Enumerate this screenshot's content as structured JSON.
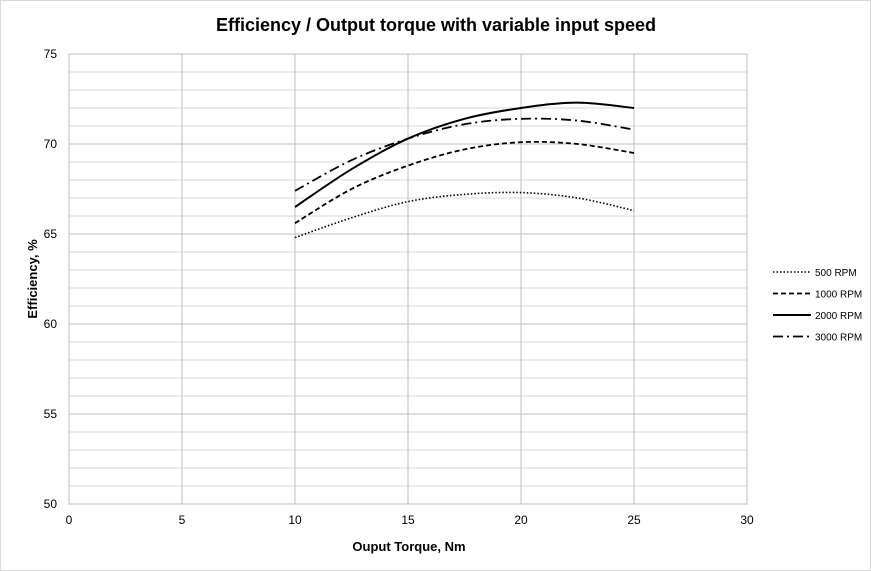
{
  "chart_data": {
    "type": "line",
    "title": "Efficiency / Output torque with variable input speed",
    "xlabel": "Ouput Torque, Nm",
    "ylabel": "Efficiency, %",
    "xlim": [
      0,
      30
    ],
    "ylim": [
      50,
      75
    ],
    "x_ticks": [
      0,
      5,
      10,
      15,
      20,
      25,
      30
    ],
    "y_ticks": [
      50,
      55,
      60,
      65,
      70,
      75
    ],
    "grid": true,
    "minor_y_step": 1,
    "legend_position": "right",
    "x": [
      10,
      12.5,
      15,
      17.5,
      20,
      22.5,
      25
    ],
    "series": [
      {
        "name": "500 RPM",
        "style": "dotted",
        "color": "#000000",
        "values": [
          64.8,
          65.9,
          66.8,
          67.2,
          67.3,
          67.0,
          66.3
        ]
      },
      {
        "name": "1000 RPM",
        "style": "dashed",
        "color": "#000000",
        "values": [
          65.6,
          67.5,
          68.8,
          69.7,
          70.1,
          70.0,
          69.5
        ]
      },
      {
        "name": "2000 RPM",
        "style": "solid",
        "color": "#000000",
        "values": [
          66.5,
          68.6,
          70.3,
          71.4,
          72.0,
          72.3,
          72.0
        ]
      },
      {
        "name": "3000 RPM",
        "style": "dashdot",
        "color": "#000000",
        "values": [
          67.4,
          69.1,
          70.3,
          71.1,
          71.4,
          71.3,
          70.8
        ]
      }
    ]
  }
}
